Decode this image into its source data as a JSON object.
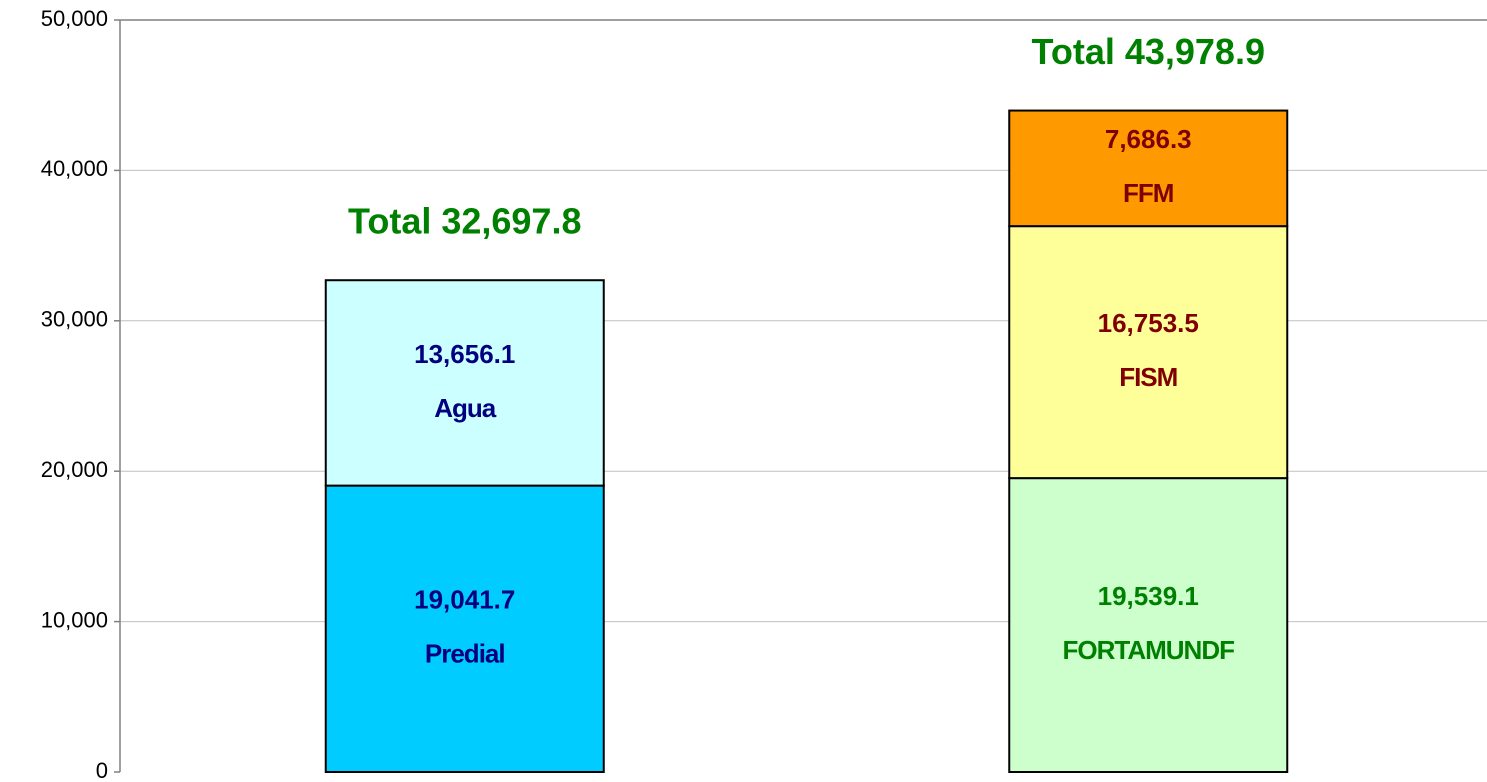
{
  "chart_data": {
    "type": "stacked_bar",
    "series": [
      {
        "name": "Predial",
        "color": "#00ccff",
        "label_color": "#000080",
        "values": [
          19041.7,
          null
        ],
        "value_labels": [
          "19,041.7",
          null
        ]
      },
      {
        "name": "Agua",
        "color": "#ccffff",
        "label_color": "#000080",
        "values": [
          13656.1,
          null
        ],
        "value_labels": [
          "13,656.1",
          null
        ]
      },
      {
        "name": "FORTAMUNDF",
        "color": "#ccffcc",
        "label_color": "#008000",
        "values": [
          null,
          19539.1
        ],
        "value_labels": [
          null,
          "19,539.1"
        ]
      },
      {
        "name": "FISM",
        "color": "#ffff99",
        "label_color": "#800000",
        "values": [
          null,
          16753.5
        ],
        "value_labels": [
          null,
          "16,753.5"
        ]
      },
      {
        "name": "FFM",
        "color": "#ff9900",
        "label_color": "#800000",
        "values": [
          null,
          7686.3
        ],
        "value_labels": [
          null,
          "7,686.3"
        ]
      }
    ],
    "annotations": [
      "Total 32,697.8",
      "Total 43,978.9"
    ],
    "ylim": [
      0,
      50000
    ],
    "yticks": [
      0,
      {
        "value": 10000,
        "label": "10,000"
      },
      {
        "value": 20000,
        "label": "20,000"
      },
      {
        "value": 30000,
        "label": "30,000"
      },
      {
        "value": 40000,
        "label": "40,000"
      },
      {
        "value": 50000,
        "label": "50,000"
      }
    ],
    "grid": true
  }
}
